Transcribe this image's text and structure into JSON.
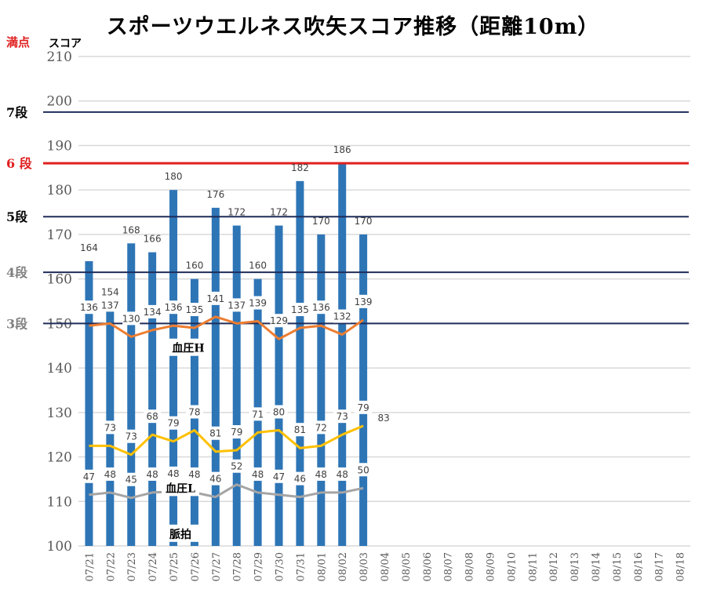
{
  "title": "スポーツウエルネス吹矢スコア推移（距離10m）",
  "corner_labels": {
    "full": "満点",
    "score": "スコア"
  },
  "chart_data": {
    "type": "bar",
    "title": "スポーツウエルネス吹矢スコア推移（距離10m）",
    "ylabel": "スコア",
    "ylim": [
      100,
      210
    ],
    "yticks": [
      100,
      110,
      120,
      130,
      140,
      150,
      160,
      170,
      180,
      190,
      200,
      210
    ],
    "grid": true,
    "categories": [
      "07/21",
      "07/22",
      "07/23",
      "07/24",
      "07/25",
      "07/26",
      "07/27",
      "07/28",
      "07/29",
      "07/30",
      "07/31",
      "08/01",
      "08/02",
      "08/03",
      "08/04",
      "08/05",
      "08/06",
      "08/07",
      "08/08",
      "08/09",
      "08/10",
      "08/11",
      "08/12",
      "08/13",
      "08/14",
      "08/15",
      "08/16",
      "08/17",
      "08/18"
    ],
    "scores": [
      164,
      154,
      168,
      166,
      180,
      160,
      176,
      172,
      160,
      172,
      182,
      170,
      186,
      170
    ],
    "lines": [
      {
        "name": "血圧H",
        "color": "#ED7D31",
        "labels": [
          "136",
          "137",
          "130",
          "134",
          "136",
          "135",
          "141",
          "137",
          "139",
          "129",
          "135",
          "136",
          "132",
          "139"
        ],
        "levels": [
          149.5,
          150,
          147,
          148.5,
          149.5,
          149,
          151.5,
          150,
          150.5,
          146.5,
          149,
          149.5,
          147.5,
          150.8
        ]
      },
      {
        "name": "血圧L",
        "color": "#FFC000",
        "labels": [
          "",
          "73",
          "73",
          "68",
          "79",
          "78",
          "81",
          "79",
          "71",
          "80",
          "81",
          "72",
          "73",
          "79"
        ],
        "levels": [
          122.5,
          122.5,
          120.5,
          125,
          123.5,
          126,
          121.2,
          121.5,
          125.5,
          126,
          122,
          122.5,
          125,
          127
        ],
        "extra_label": "83"
      },
      {
        "name": "脈拍",
        "color": "#A5A5A5",
        "labels": [
          "47",
          "48",
          "45",
          "48",
          "48",
          "48",
          "46",
          "52",
          "48",
          "47",
          "46",
          "48",
          "48",
          "50"
        ],
        "levels": [
          111.5,
          112,
          110.8,
          112,
          112.2,
          112,
          111,
          113.8,
          112,
          111.5,
          111,
          112,
          112,
          113
        ]
      }
    ],
    "dan_levels": [
      {
        "label": "7段",
        "value": 197.5,
        "color": "#1F2D5A",
        "label_color": "#000000"
      },
      {
        "label": "6 段",
        "value": 186,
        "color": "#E02020",
        "label_color": "#E02020"
      },
      {
        "label": "5段",
        "value": 174,
        "color": "#1F2D5A",
        "label_color": "#000000"
      },
      {
        "label": "4段",
        "value": 161.5,
        "color": "#1F2D5A",
        "label_color": "#808080"
      },
      {
        "label": "3段",
        "value": 150,
        "color": "#1F2D5A",
        "label_color": "#808080"
      }
    ],
    "colors": {
      "bar": "#2E75B6",
      "grid": "#D9D9D9"
    }
  }
}
